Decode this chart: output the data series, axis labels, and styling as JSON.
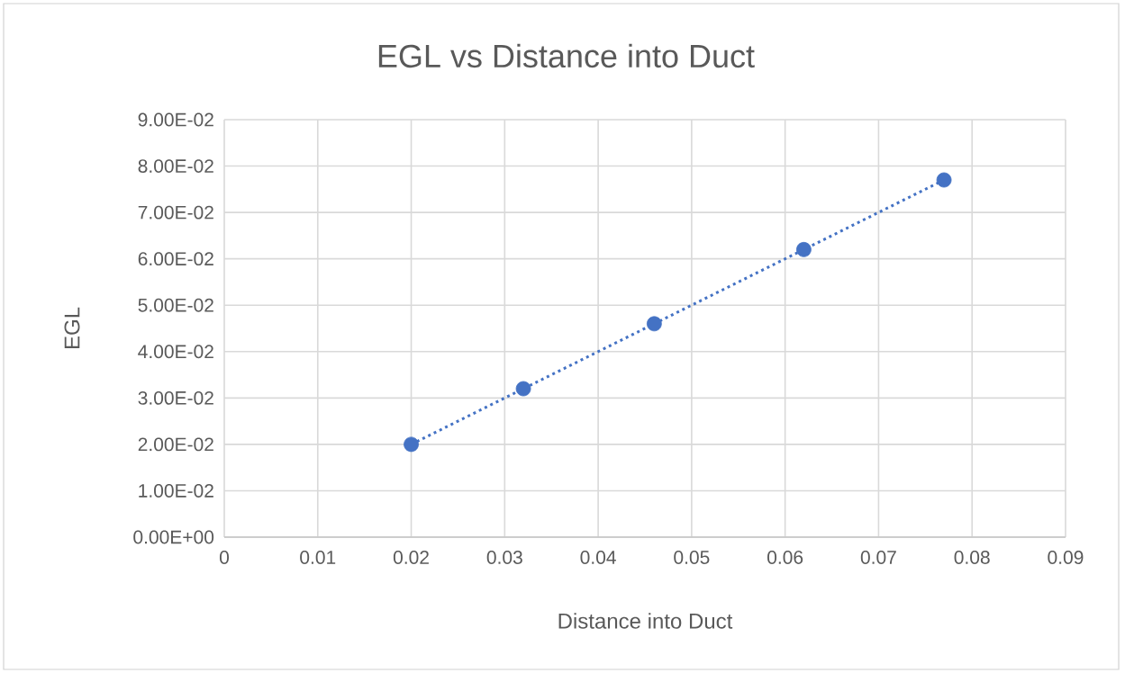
{
  "chart_data": {
    "type": "scatter",
    "title": "EGL vs Distance into Duct",
    "xlabel": "Distance into Duct",
    "ylabel": "EGL",
    "x": [
      0.02,
      0.032,
      0.046,
      0.062,
      0.077
    ],
    "series": [
      {
        "color": "#4472c4",
        "marker": "circle",
        "values": [
          0.02,
          0.032,
          0.046,
          0.062,
          0.077
        ]
      },
      {
        "type": "line",
        "color": "#4472c4",
        "marker": "none",
        "line_style": "dotted",
        "x": [
          0.02,
          0.077
        ],
        "values": [
          0.02,
          0.077
        ]
      }
    ],
    "xlim": [
      0,
      0.09
    ],
    "ylim": [
      0,
      0.09
    ],
    "xticks": [
      0,
      0.01,
      0.02,
      0.03,
      0.04,
      0.05,
      0.06,
      0.07,
      0.08,
      0.09
    ],
    "yticks": [
      {
        "value": 0,
        "label": "0.00E+00"
      },
      {
        "value": 0.01,
        "label": "1.00E-02"
      },
      {
        "value": 0.02,
        "label": "2.00E-02"
      },
      {
        "value": 0.03,
        "label": "3.00E-02"
      },
      {
        "value": 0.04,
        "label": "4.00E-02"
      },
      {
        "value": 0.05,
        "label": "5.00E-02"
      },
      {
        "value": 0.06,
        "label": "6.00E-02"
      },
      {
        "value": 0.07,
        "label": "7.00E-02"
      },
      {
        "value": 0.08,
        "label": "8.00E-02"
      },
      {
        "value": 0.09,
        "label": "9.00E-02"
      }
    ],
    "grid": true
  }
}
